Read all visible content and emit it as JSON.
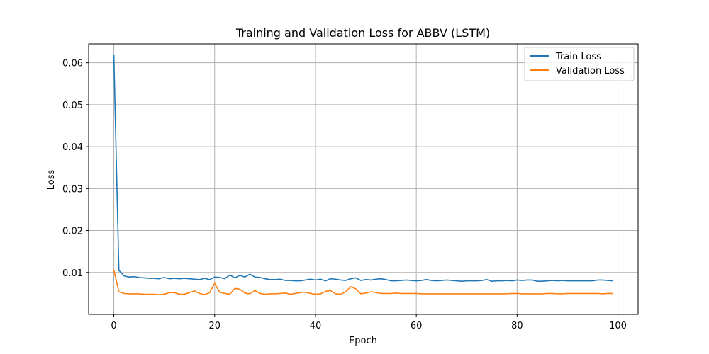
{
  "chart_data": {
    "type": "line",
    "title": "Training and Validation Loss for ABBV (LSTM)",
    "xlabel": "Epoch",
    "ylabel": "Loss",
    "xlim": [
      -5,
      104
    ],
    "ylim": [
      0.0,
      0.0645
    ],
    "xticks": [
      0,
      20,
      40,
      60,
      80,
      100
    ],
    "yticks": [
      0.01,
      0.02,
      0.03,
      0.04,
      0.05,
      0.06
    ],
    "grid": true,
    "legend_position": "top-right",
    "series": [
      {
        "name": "Train Loss",
        "color": "#1f77b4",
        "x": [
          0,
          1,
          2,
          3,
          4,
          5,
          6,
          7,
          8,
          9,
          10,
          11,
          12,
          13,
          14,
          15,
          16,
          17,
          18,
          19,
          20,
          21,
          22,
          23,
          24,
          25,
          26,
          27,
          28,
          29,
          30,
          31,
          32,
          33,
          34,
          35,
          36,
          37,
          38,
          39,
          40,
          41,
          42,
          43,
          44,
          45,
          46,
          47,
          48,
          49,
          50,
          51,
          52,
          53,
          54,
          55,
          56,
          57,
          58,
          59,
          60,
          61,
          62,
          63,
          64,
          65,
          66,
          67,
          68,
          69,
          70,
          71,
          72,
          73,
          74,
          75,
          76,
          77,
          78,
          79,
          80,
          81,
          82,
          83,
          84,
          85,
          86,
          87,
          88,
          89,
          90,
          91,
          92,
          93,
          94,
          95,
          96,
          97,
          98,
          99
        ],
        "values": [
          0.0619,
          0.0105,
          0.0092,
          0.0089,
          0.009,
          0.0088,
          0.0087,
          0.0086,
          0.0086,
          0.0085,
          0.0088,
          0.0085,
          0.0086,
          0.0085,
          0.0086,
          0.0085,
          0.0084,
          0.0083,
          0.0086,
          0.0083,
          0.0089,
          0.0088,
          0.0085,
          0.0094,
          0.0087,
          0.0093,
          0.0089,
          0.0096,
          0.0089,
          0.0088,
          0.0085,
          0.0083,
          0.0083,
          0.0084,
          0.0081,
          0.0081,
          0.008,
          0.008,
          0.0082,
          0.0084,
          0.0082,
          0.0084,
          0.008,
          0.0085,
          0.0084,
          0.0082,
          0.0081,
          0.0085,
          0.0087,
          0.0081,
          0.0083,
          0.0082,
          0.0084,
          0.0085,
          0.0083,
          0.008,
          0.008,
          0.0081,
          0.0082,
          0.0081,
          0.008,
          0.0081,
          0.0083,
          0.0081,
          0.008,
          0.0081,
          0.0082,
          0.0081,
          0.008,
          0.0079,
          0.008,
          0.008,
          0.008,
          0.0081,
          0.0083,
          0.0079,
          0.008,
          0.008,
          0.0081,
          0.008,
          0.0082,
          0.0081,
          0.0082,
          0.0082,
          0.0079,
          0.0079,
          0.008,
          0.0081,
          0.008,
          0.0081,
          0.008,
          0.008,
          0.008,
          0.008,
          0.008,
          0.008,
          0.0082,
          0.0082,
          0.0081,
          0.008
        ]
      },
      {
        "name": "Validation Loss",
        "color": "#ff7f0e",
        "x": [
          0,
          1,
          2,
          3,
          4,
          5,
          6,
          7,
          8,
          9,
          10,
          11,
          12,
          13,
          14,
          15,
          16,
          17,
          18,
          19,
          20,
          21,
          22,
          23,
          24,
          25,
          26,
          27,
          28,
          29,
          30,
          31,
          32,
          33,
          34,
          35,
          36,
          37,
          38,
          39,
          40,
          41,
          42,
          43,
          44,
          45,
          46,
          47,
          48,
          49,
          50,
          51,
          52,
          53,
          54,
          55,
          56,
          57,
          58,
          59,
          60,
          61,
          62,
          63,
          64,
          65,
          66,
          67,
          68,
          69,
          70,
          71,
          72,
          73,
          74,
          75,
          76,
          77,
          78,
          79,
          80,
          81,
          82,
          83,
          84,
          85,
          86,
          87,
          88,
          89,
          90,
          91,
          92,
          93,
          94,
          95,
          96,
          97,
          98,
          99
        ],
        "values": [
          0.0106,
          0.0054,
          0.005,
          0.0049,
          0.0049,
          0.0049,
          0.0048,
          0.0048,
          0.0048,
          0.0047,
          0.0048,
          0.0052,
          0.0052,
          0.0048,
          0.0048,
          0.0052,
          0.0056,
          0.005,
          0.0047,
          0.0052,
          0.0074,
          0.0053,
          0.005,
          0.0048,
          0.0062,
          0.006,
          0.0051,
          0.0049,
          0.0057,
          0.005,
          0.0048,
          0.0049,
          0.0049,
          0.005,
          0.0051,
          0.0048,
          0.005,
          0.0052,
          0.0053,
          0.005,
          0.0048,
          0.0049,
          0.0055,
          0.0057,
          0.0049,
          0.0048,
          0.0054,
          0.0066,
          0.0061,
          0.0049,
          0.0051,
          0.0054,
          0.0052,
          0.005,
          0.005,
          0.005,
          0.0051,
          0.005,
          0.005,
          0.005,
          0.005,
          0.0049,
          0.0049,
          0.0049,
          0.0049,
          0.0049,
          0.0049,
          0.0049,
          0.0049,
          0.0049,
          0.0049,
          0.0049,
          0.0049,
          0.0049,
          0.0049,
          0.0049,
          0.0049,
          0.0049,
          0.0049,
          0.005,
          0.005,
          0.0049,
          0.0049,
          0.0049,
          0.0049,
          0.0049,
          0.005,
          0.005,
          0.0049,
          0.0049,
          0.005,
          0.005,
          0.005,
          0.005,
          0.005,
          0.005,
          0.005,
          0.0049,
          0.005,
          0.005
        ]
      }
    ],
    "xtick_labels": [
      "0",
      "20",
      "40",
      "60",
      "80",
      "100"
    ],
    "ytick_labels": [
      "0.01",
      "0.02",
      "0.03",
      "0.04",
      "0.05",
      "0.06"
    ]
  }
}
